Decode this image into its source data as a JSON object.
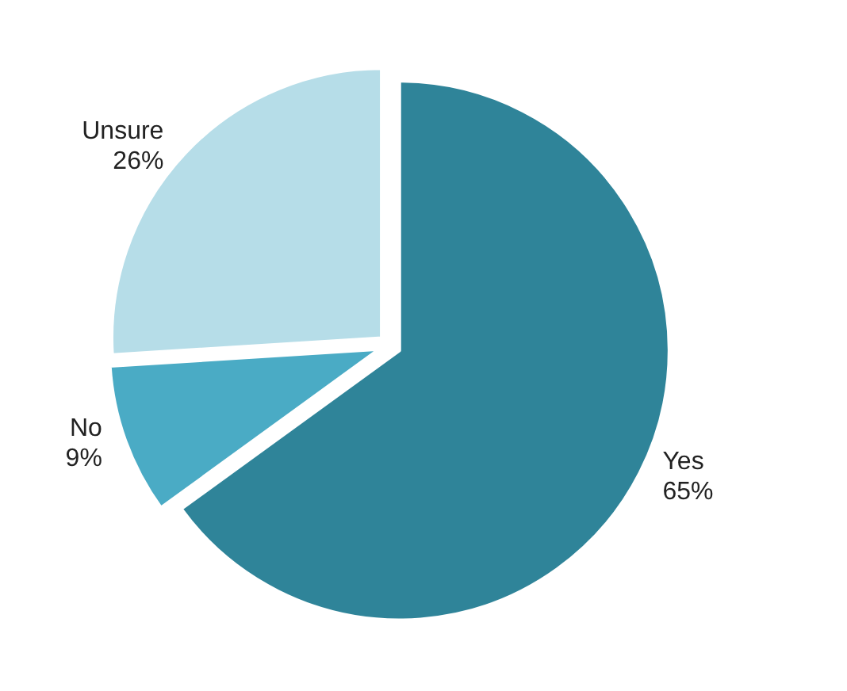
{
  "chart_data": {
    "type": "pie",
    "categories": [
      "Yes",
      "No",
      "Unsure"
    ],
    "values": [
      65,
      9,
      26
    ],
    "value_labels": [
      "65%",
      "9%",
      "26%"
    ],
    "colors": [
      "#2f8499",
      "#4aabc5",
      "#b6dde8"
    ],
    "legend": false
  }
}
